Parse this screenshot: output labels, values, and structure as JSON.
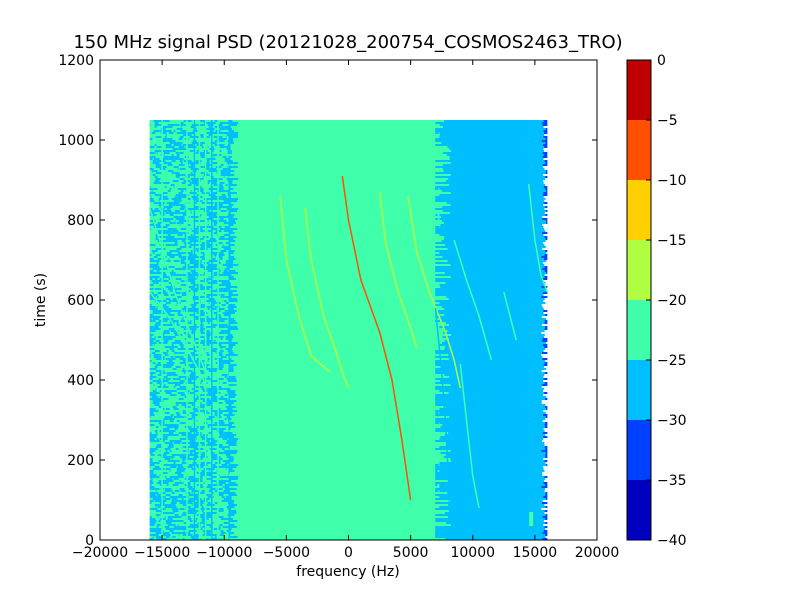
{
  "chart_data": {
    "type": "heatmap",
    "title": "150 MHz signal PSD (20121028_200754_COSMOS2463_TRO)",
    "xlabel": "frequency (Hz)",
    "ylabel": "time (s)",
    "xlim": [
      -20000,
      20000
    ],
    "ylim": [
      0,
      1200
    ],
    "x_ticks": [
      -20000,
      -15000,
      -10000,
      -5000,
      0,
      5000,
      10000,
      15000,
      20000
    ],
    "x_tick_labels": [
      "−20000",
      "−15000",
      "−10000",
      "−5000",
      "0",
      "5000",
      "10000",
      "15000",
      "20000"
    ],
    "y_ticks": [
      0,
      200,
      400,
      600,
      800,
      1000,
      1200
    ],
    "y_tick_labels": [
      "0",
      "200",
      "400",
      "600",
      "800",
      "1000",
      "1200"
    ],
    "data_extent": {
      "x": [
        -16000,
        16000
      ],
      "y": [
        0,
        1050
      ]
    },
    "grid": false,
    "colorbar": {
      "levels": [
        -40,
        -35,
        -30,
        -25,
        -20,
        -15,
        -10,
        -5,
        0
      ],
      "tick_labels": [
        "−40",
        "−35",
        "−30",
        "−25",
        "−20",
        "−15",
        "−10",
        "−5",
        "0"
      ],
      "colors": [
        "#0000bf",
        "#0040ff",
        "#00bfff",
        "#40ffaa",
        "#b0ff40",
        "#ffd000",
        "#ff5000",
        "#bf0000"
      ]
    },
    "regions": [
      {
        "x": [
          -16000,
          -9500
        ],
        "level": -25,
        "pattern": "noisy-mixed"
      },
      {
        "x": [
          -9500,
          7300
        ],
        "level": -22.5,
        "pattern": "uniform"
      },
      {
        "x": [
          7300,
          16000
        ],
        "level": -27.5,
        "pattern": "uniform-speckled"
      }
    ],
    "traces": [
      {
        "level": -7,
        "points": [
          [
            -500,
            910
          ],
          [
            0,
            800
          ],
          [
            1000,
            650
          ],
          [
            2500,
            520
          ],
          [
            3500,
            400
          ],
          [
            4300,
            250
          ],
          [
            5000,
            100
          ]
        ]
      },
      {
        "level": -18,
        "points": [
          [
            -3500,
            830
          ],
          [
            -3000,
            700
          ],
          [
            -2000,
            560
          ],
          [
            -1000,
            470
          ],
          [
            -500,
            420
          ],
          [
            0,
            380
          ]
        ]
      },
      {
        "level": -18,
        "points": [
          [
            -5500,
            860
          ],
          [
            -5000,
            700
          ],
          [
            -4000,
            560
          ],
          [
            -3000,
            460
          ],
          [
            -1500,
            420
          ]
        ]
      },
      {
        "level": -18,
        "points": [
          [
            2500,
            870
          ],
          [
            3000,
            740
          ],
          [
            4000,
            620
          ],
          [
            5000,
            530
          ],
          [
            5500,
            480
          ]
        ]
      },
      {
        "level": -18,
        "points": [
          [
            4800,
            860
          ],
          [
            5500,
            720
          ],
          [
            6500,
            620
          ],
          [
            7800,
            520
          ],
          [
            8500,
            450
          ],
          [
            9000,
            380
          ]
        ]
      },
      {
        "level": -22.5,
        "points": [
          [
            9000,
            440
          ],
          [
            9500,
            300
          ],
          [
            10000,
            160
          ],
          [
            10500,
            80
          ]
        ]
      },
      {
        "level": -22.5,
        "points": [
          [
            14500,
            890
          ],
          [
            15000,
            750
          ],
          [
            15500,
            660
          ],
          [
            16000,
            620
          ]
        ]
      },
      {
        "level": -22.5,
        "points": [
          [
            -16000,
            830
          ],
          [
            -15000,
            730
          ],
          [
            -14000,
            620
          ],
          [
            -12500,
            500
          ],
          [
            -11500,
            420
          ]
        ]
      },
      {
        "level": -22.5,
        "points": [
          [
            -16000,
            620
          ],
          [
            -14500,
            560
          ],
          [
            -13000,
            480
          ],
          [
            -12000,
            420
          ],
          [
            -11500,
            390
          ]
        ]
      },
      {
        "level": -25,
        "points": [
          [
            8500,
            750
          ],
          [
            9500,
            650
          ],
          [
            10500,
            560
          ],
          [
            11500,
            450
          ]
        ]
      },
      {
        "level": -25,
        "points": [
          [
            12500,
            620
          ],
          [
            13500,
            500
          ]
        ]
      },
      {
        "level": -27.5,
        "points": [
          [
            7000,
            580
          ],
          [
            7500,
            420
          ],
          [
            7800,
            300
          ],
          [
            8000,
            180
          ],
          [
            8200,
            40
          ]
        ]
      }
    ],
    "vertical_lines": [
      {
        "x": -15000,
        "level": -22.5
      },
      {
        "x": -13000,
        "level": -22.5
      },
      {
        "x": -12400,
        "level": -27.5
      },
      {
        "x": -12000,
        "level": -22.5
      },
      {
        "x": -11500,
        "level": -22.5
      },
      {
        "x": -11000,
        "level": -27.5
      },
      {
        "x": -10500,
        "level": -22.5
      }
    ],
    "spots": [
      {
        "x": 14700,
        "y": 40,
        "level": -22.5
      }
    ]
  }
}
